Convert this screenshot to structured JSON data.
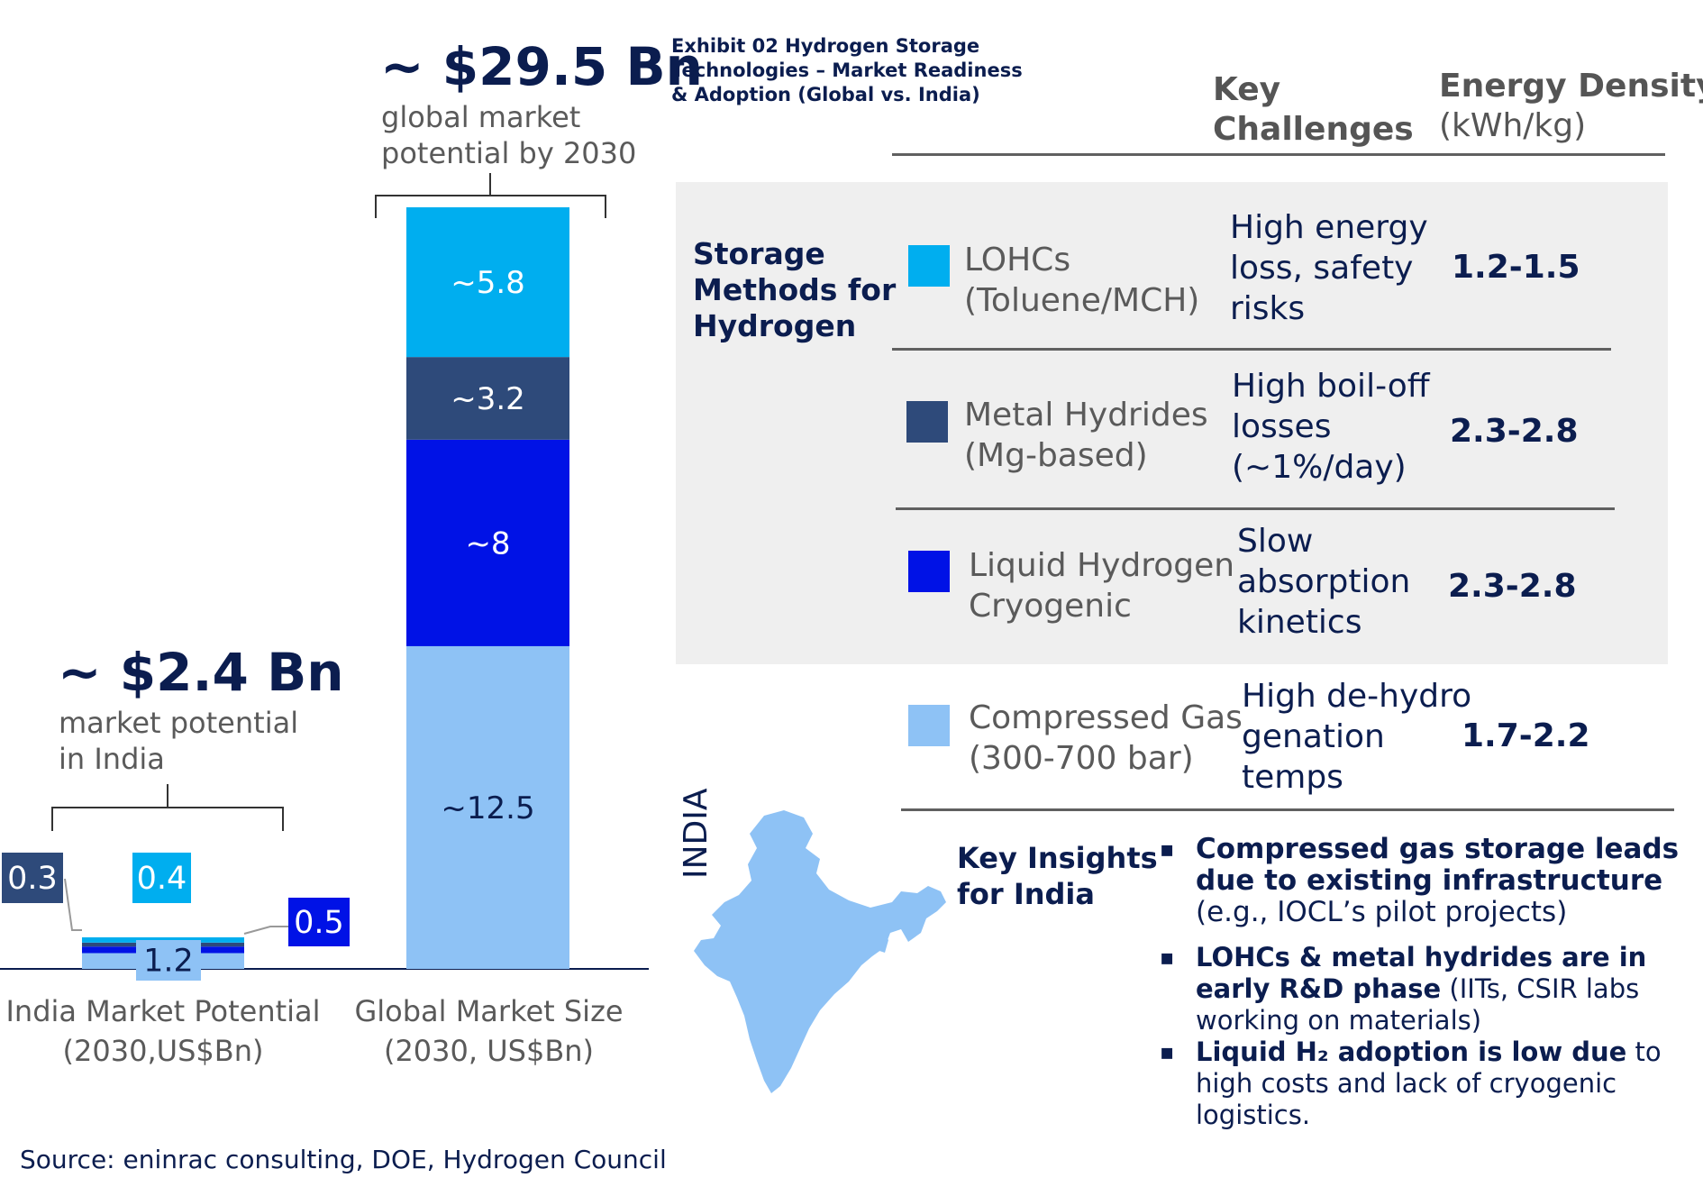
{
  "chart_data": [
    {
      "type": "bar",
      "stacked": true,
      "categories": [
        "India Market Potential (2030,US$Bn)"
      ],
      "series": [
        {
          "name": "Compressed Gas",
          "color": "#8ec2f5",
          "values": [
            1.2
          ],
          "label": "1.2"
        },
        {
          "name": "Liquid Hydrogen Cryogenic",
          "color": "#0012e6",
          "values": [
            0.5
          ],
          "label": "0.5"
        },
        {
          "name": "Metal Hydrides",
          "color": "#2e4a7a",
          "values": [
            0.3
          ],
          "label": "0.3"
        },
        {
          "name": "LOHCs",
          "color": "#00aeef",
          "values": [
            0.4
          ],
          "label": "0.4"
        }
      ],
      "headline": "~ $2.4 Bn",
      "subtitle": "market potential in India",
      "xlabel_line1": "India Market Potential",
      "xlabel_line2": "(2030,US$Bn)"
    },
    {
      "type": "bar",
      "stacked": true,
      "categories": [
        "Global Market Size (2030, US$Bn)"
      ],
      "series": [
        {
          "name": "Compressed Gas",
          "color": "#8ec2f5",
          "values": [
            12.5
          ],
          "label": "~12.5"
        },
        {
          "name": "Liquid Hydrogen Cryogenic",
          "color": "#0012e6",
          "values": [
            8
          ],
          "label": "~8"
        },
        {
          "name": "Metal Hydrides",
          "color": "#2e4a7a",
          "values": [
            3.2
          ],
          "label": "~3.2"
        },
        {
          "name": "LOHCs",
          "color": "#00aeef",
          "values": [
            5.8
          ],
          "label": "~5.8"
        }
      ],
      "headline": "~ $29.5 Bn",
      "subtitle": "global market potential by 2030",
      "xlabel_line1": "Global Market Size",
      "xlabel_line2": "(2030, US$Bn)"
    }
  ],
  "india_headline": "~ $2.4 Bn",
  "india_sub_1": "market potential",
  "india_sub_2": "in India",
  "global_headline": "~ $29.5 Bn",
  "global_sub_1": "global market",
  "global_sub_2": "potential by 2030",
  "india_axis_1": "India Market Potential",
  "india_axis_2": "(2030,US$Bn)",
  "global_axis_1": "Global Market Size",
  "global_axis_2": "(2030, US$Bn)",
  "exhibit_title": "Exhibit 02 Hydrogen Storage Technologies – Market Readiness & Adoption (Global vs. India)",
  "table": {
    "header_challenges_1": "Key",
    "header_challenges_2": "Challenges",
    "header_density_1": "Energy Density",
    "header_density_2": "(kWh/kg)",
    "storage_label_1": "Storage",
    "storage_label_2": "Methods for",
    "storage_label_3": "Hydrogen",
    "rows": [
      {
        "color": "#00aeef",
        "method_1": "LOHCs",
        "method_2": "(Toluene/MCH)",
        "chal_1": "High energy",
        "chal_2": "loss, safety",
        "chal_3": "risks",
        "density": "1.2-1.5"
      },
      {
        "color": "#2e4a7a",
        "method_1": "Metal Hydrides",
        "method_2": "(Mg-based)",
        "chal_1": "High boil-off",
        "chal_2": "losses",
        "chal_3": "(~1%/day)",
        "density": "2.3-2.8"
      },
      {
        "color": "#0012e6",
        "method_1": "Liquid Hydrogen",
        "method_2": "Cryogenic",
        "chal_1": "Slow",
        "chal_2": "absorption",
        "chal_3": "kinetics",
        "density": "2.3-2.8"
      },
      {
        "color": "#8ec2f5",
        "method_1": "Compressed Gas",
        "method_2": "(300-700 bar)",
        "chal_1": "High de-hydro",
        "chal_2": "genation",
        "chal_3": "temps",
        "density": "1.7-2.2"
      }
    ]
  },
  "map_label": "INDIA",
  "insights": {
    "label_1": "Key Insights",
    "label_2": "for India",
    "items": [
      {
        "bold": "Compressed gas storage leads due to existing infrastructure",
        "rest": " (e.g., IOCL’s pilot projects)"
      },
      {
        "bold": "LOHCs & metal hydrides are in early R&D phase",
        "rest": " (IITs, CSIR labs working on materials)"
      },
      {
        "bold": "Liquid H₂ adoption is low due",
        "rest": " to high costs and lack of cryogenic logistics."
      }
    ]
  },
  "source": "Source: eninrac consulting, DOE, Hydrogen Council",
  "colors": {
    "navy": "#0b1d4f",
    "lohc": "#00aeef",
    "metal": "#2e4a7a",
    "liquid": "#0012e6",
    "compressed": "#8ec2f5"
  }
}
